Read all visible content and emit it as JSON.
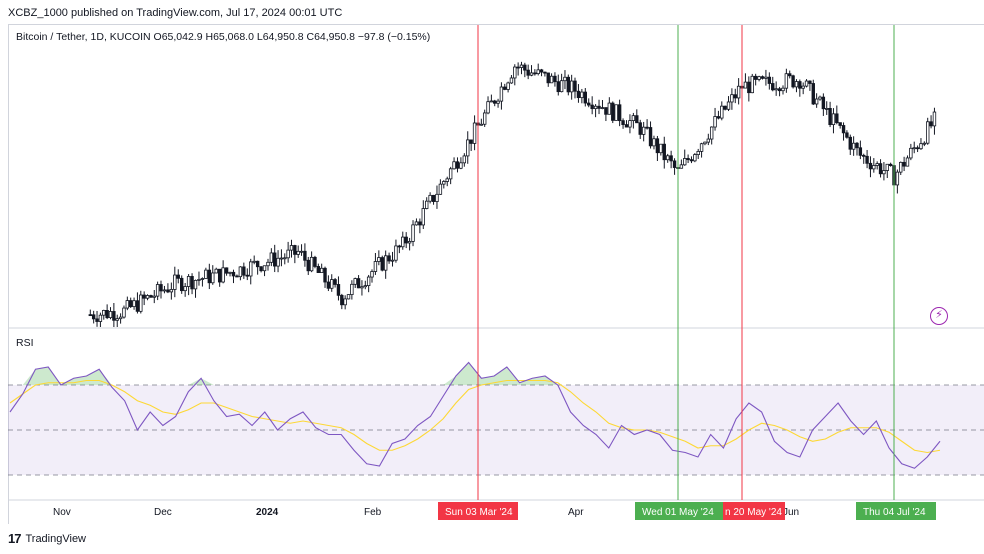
{
  "header": {
    "publish_line": "XCBZ_1000 published on TradingView.com, Jul 17, 2024 00:01 UTC"
  },
  "symbol": {
    "line": "Bitcoin / Tether, 1D, KUCOIN  O65,042.9  H65,068.0  L64,950.8  C64,950.8  −97.8 (−0.15%)"
  },
  "rsi": {
    "label": "RSI"
  },
  "footer": {
    "brand": "TradingView",
    "logo": "17"
  },
  "colors": {
    "up_down_candle": "#131722",
    "red_marker": "#f23645",
    "green_marker": "#4caf50",
    "rsi_line": "#7e57c2",
    "rsi_ma": "#fdd835",
    "rsi_band": "#7e57c2"
  },
  "icons": {
    "bolt": "lightning-icon"
  },
  "chart_data": [
    {
      "type": "candlestick",
      "title": "Bitcoin / Tether, 1D, KUCOIN",
      "x_tick_labels": [
        "Nov",
        "Dec",
        "2024",
        "Feb",
        "Apr",
        "Jun"
      ],
      "approx_close_trend": [
        {
          "date": "2023-11-10",
          "close": 37000
        },
        {
          "date": "2023-11-20",
          "close": 37500
        },
        {
          "date": "2023-12-05",
          "close": 41500
        },
        {
          "date": "2023-12-20",
          "close": 43000
        },
        {
          "date": "2024-01-10",
          "close": 46000
        },
        {
          "date": "2024-01-23",
          "close": 39500
        },
        {
          "date": "2024-02-10",
          "close": 47000
        },
        {
          "date": "2024-02-28",
          "close": 61000
        },
        {
          "date": "2024-03-14",
          "close": 73000
        },
        {
          "date": "2024-04-01",
          "close": 69500
        },
        {
          "date": "2024-04-20",
          "close": 64000
        },
        {
          "date": "2024-05-01",
          "close": 57500
        },
        {
          "date": "2024-05-20",
          "close": 70000
        },
        {
          "date": "2024-06-06",
          "close": 71000
        },
        {
          "date": "2024-06-24",
          "close": 60000
        },
        {
          "date": "2024-07-04",
          "close": 57000
        },
        {
          "date": "2024-07-16",
          "close": 65000
        }
      ]
    },
    {
      "type": "line",
      "title": "RSI",
      "bands": [
        70,
        50,
        30
      ],
      "series": [
        {
          "values": [
            58,
            66,
            77,
            78,
            70,
            73,
            74,
            77,
            69,
            63,
            50,
            58,
            52,
            56,
            67,
            73,
            63,
            56,
            57,
            52,
            58,
            50,
            55,
            58,
            51,
            48,
            48,
            41,
            35,
            34,
            44,
            46,
            52,
            56,
            65,
            74,
            80,
            73,
            74,
            78,
            71,
            73,
            74,
            70,
            58,
            52,
            48,
            42,
            52,
            48,
            50,
            48,
            41,
            40,
            38,
            48,
            42,
            55,
            62,
            58,
            45,
            40,
            38,
            50,
            56,
            62,
            54,
            48,
            54,
            42,
            35,
            33,
            38,
            45
          ]
        },
        {
          "values": [
            62,
            66,
            70,
            71,
            71,
            71,
            72,
            72,
            70,
            67,
            63,
            61,
            58,
            57,
            59,
            62,
            62,
            60,
            58,
            56,
            55,
            54,
            53,
            54,
            53,
            52,
            51,
            48,
            44,
            41,
            41,
            43,
            46,
            50,
            55,
            62,
            68,
            70,
            71,
            72,
            72,
            72,
            72,
            71,
            67,
            62,
            58,
            53,
            51,
            50,
            50,
            49,
            47,
            45,
            42,
            43,
            43,
            46,
            50,
            53,
            52,
            50,
            47,
            45,
            46,
            49,
            51,
            51,
            51,
            49,
            45,
            41,
            40,
            41
          ]
        }
      ]
    }
  ],
  "markers": [
    {
      "label": "Sun 03 Mar '24",
      "color": "red",
      "date": "2024-03-03"
    },
    {
      "label": "Wed 01 May '24",
      "color": "green",
      "date": "2024-05-01"
    },
    {
      "label": "n 20 May '24",
      "color": "red",
      "date": "2024-05-20"
    },
    {
      "label": "Thu 04 Jul '24",
      "color": "green",
      "date": "2024-07-04"
    }
  ]
}
